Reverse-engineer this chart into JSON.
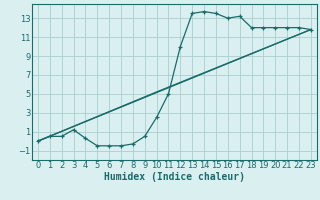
{
  "xlabel": "Humidex (Indice chaleur)",
  "bg_color": "#daf0f0",
  "grid_color": "#aacece",
  "line_color": "#1a6b6b",
  "xlim": [
    -0.5,
    23.5
  ],
  "ylim": [
    -2.0,
    14.5
  ],
  "xticks": [
    0,
    1,
    2,
    3,
    4,
    5,
    6,
    7,
    8,
    9,
    10,
    11,
    12,
    13,
    14,
    15,
    16,
    17,
    18,
    19,
    20,
    21,
    22,
    23
  ],
  "yticks": [
    -1,
    1,
    3,
    5,
    7,
    9,
    11,
    13
  ],
  "line1_x": [
    0,
    1,
    2,
    3,
    4,
    5,
    6,
    7,
    8,
    9,
    10,
    11,
    12,
    13,
    14,
    15,
    16,
    17,
    18,
    19,
    20,
    21,
    22,
    23
  ],
  "line1_y": [
    0.0,
    0.5,
    0.5,
    1.2,
    0.3,
    -0.5,
    -0.5,
    -0.5,
    -0.3,
    0.5,
    2.5,
    5.0,
    10.0,
    13.5,
    13.7,
    13.5,
    13.0,
    13.2,
    12.0,
    12.0,
    12.0,
    12.0,
    12.0,
    11.8
  ],
  "line2_x": [
    0,
    23
  ],
  "line2_y": [
    0.0,
    11.8
  ],
  "line3_x": [
    0,
    10,
    23
  ],
  "line3_y": [
    0.0,
    5.2,
    11.8
  ],
  "xlabel_fontsize": 7,
  "tick_fontsize": 6
}
